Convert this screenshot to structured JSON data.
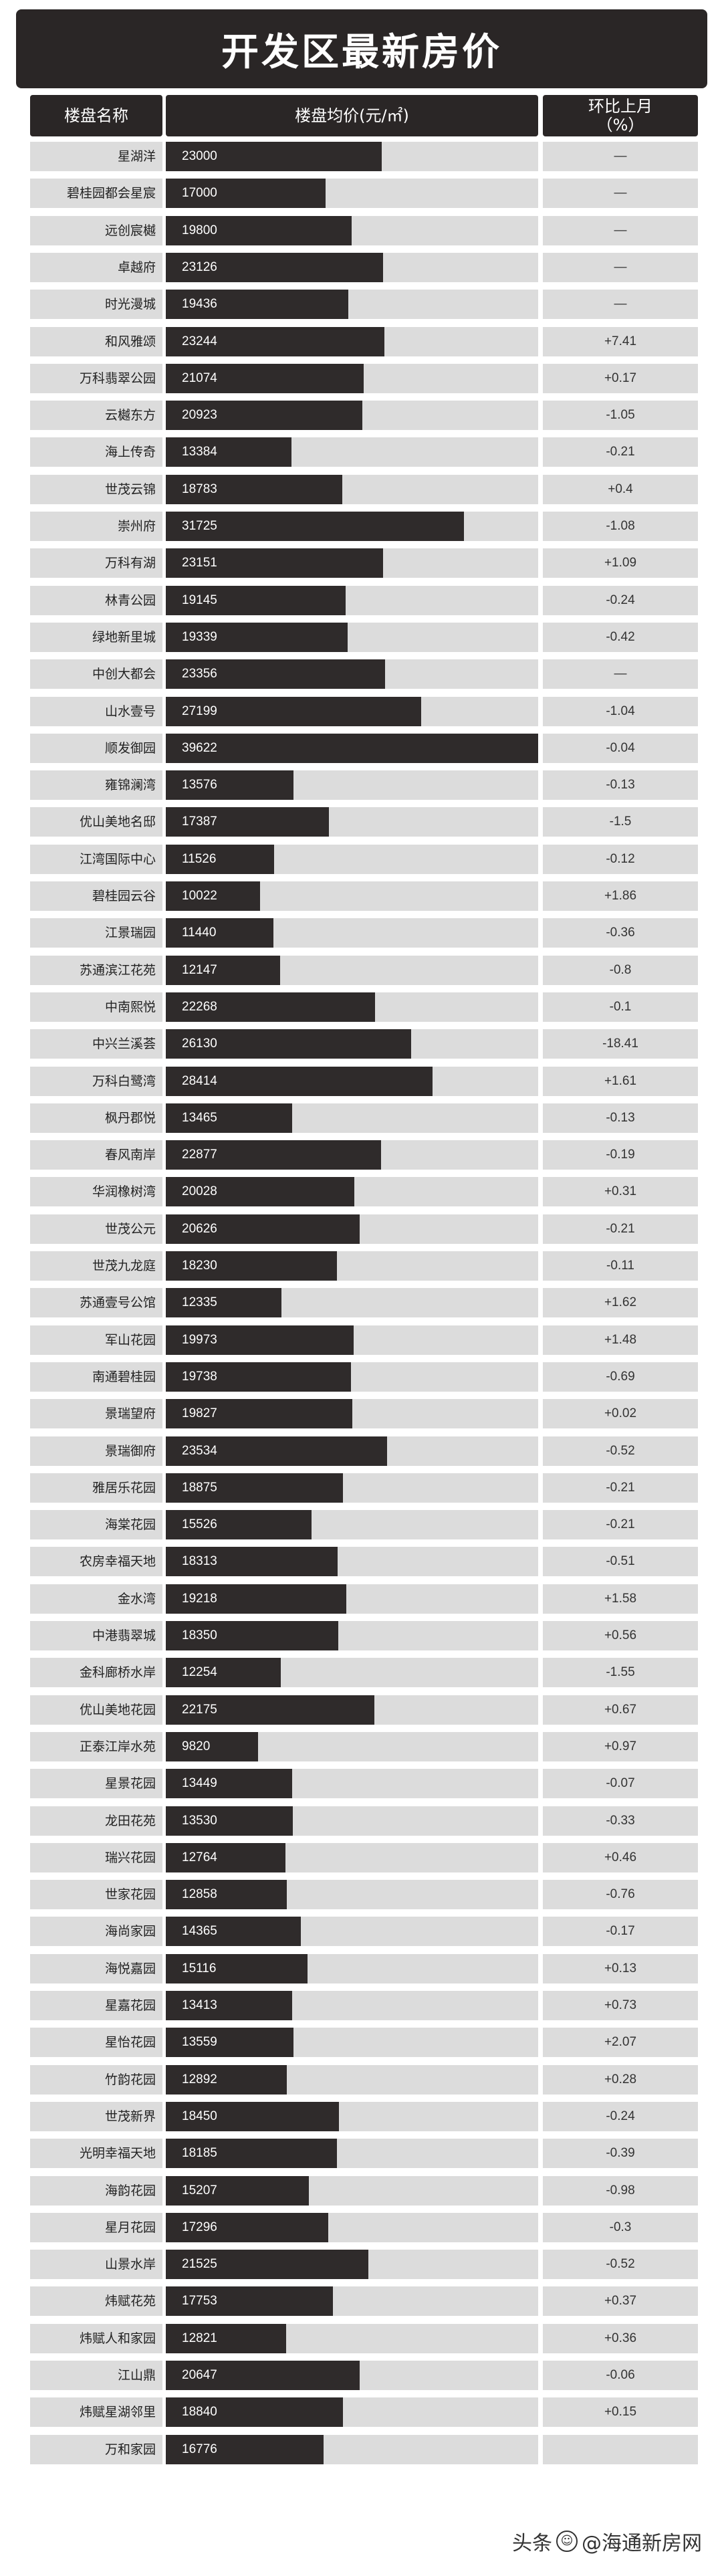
{
  "title": "开发区最新房价",
  "headers": {
    "name": "楼盘名称",
    "price": "楼盘均价(元/㎡)",
    "change": "环比上月\n（%）"
  },
  "watermark": {
    "prefix": "头条",
    "handle": "@海通新房网"
  },
  "chart_data": {
    "type": "bar",
    "orientation": "horizontal",
    "xlim": [
      0,
      39622
    ],
    "categories": [
      "星湖洋",
      "碧桂园都会星宸",
      "远创宸樾",
      "卓越府",
      "时光漫城",
      "和风雅颂",
      "万科翡翠公园",
      "云樾东方",
      "海上传奇",
      "世茂云锦",
      "崇州府",
      "万科有湖",
      "林青公园",
      "绿地新里城",
      "中创大都会",
      "山水壹号",
      "顺发御园",
      "雍锦澜湾",
      "优山美地名邸",
      "江湾国际中心",
      "碧桂园云谷",
      "江景瑞园",
      "苏通滨江花苑",
      "中南熙悦",
      "中兴兰溪荟",
      "万科白鹭湾",
      "枫丹郡悦",
      "春风南岸",
      "华润橡树湾",
      "世茂公元",
      "世茂九龙庭",
      "苏通壹号公馆",
      "军山花园",
      "南通碧桂园",
      "景瑞望府",
      "景瑞御府",
      "雅居乐花园",
      "海棠花园",
      "农房幸福天地",
      "金水湾",
      "中港翡翠城",
      "金科廊桥水岸",
      "优山美地花园",
      "正泰江岸水苑",
      "星景花园",
      "龙田花苑",
      "瑞兴花园",
      "世家花园",
      "海尚家园",
      "海悦嘉园",
      "星嘉花园",
      "星怡花园",
      "竹韵花园",
      "世茂新界",
      "光明幸福天地",
      "海韵花园",
      "星月花园",
      "山景水岸",
      "炜赋花苑",
      "炜赋人和家园",
      "江山鼎",
      "炜赋星湖邻里",
      "万和家园"
    ],
    "series": [
      {
        "values": [
          23000,
          17000,
          19800,
          23126,
          19436,
          23244,
          21074,
          20923,
          13384,
          18783,
          31725,
          23151,
          19145,
          19339,
          23356,
          27199,
          39622,
          13576,
          17387,
          11526,
          10022,
          11440,
          12147,
          22268,
          26130,
          28414,
          13465,
          22877,
          20028,
          20626,
          18230,
          12335,
          19973,
          19738,
          19827,
          23534,
          18875,
          15526,
          18313,
          19218,
          18350,
          12254,
          22175,
          9820,
          13449,
          13530,
          12764,
          12858,
          14365,
          15116,
          13413,
          13559,
          12892,
          18450,
          18185,
          15207,
          17296,
          21525,
          17753,
          12821,
          20647,
          18840,
          16776
        ]
      }
    ],
    "changes": [
      "—",
      "—",
      "—",
      "—",
      "—",
      "+7.41",
      "+0.17",
      "-1.05",
      "-0.21",
      "+0.4",
      "-1.08",
      "+1.09",
      "-0.24",
      "-0.42",
      "—",
      "-1.04",
      "-0.04",
      "-0.13",
      "-1.5",
      "-0.12",
      "+1.86",
      "-0.36",
      "-0.8",
      "-0.1",
      "-18.41",
      "+1.61",
      "-0.13",
      "-0.19",
      "+0.31",
      "-0.21",
      "-0.11",
      "+1.62",
      "+1.48",
      "-0.69",
      "+0.02",
      "-0.52",
      "-0.21",
      "-0.21",
      "-0.51",
      "+1.58",
      "+0.56",
      "-1.55",
      "+0.67",
      "+0.97",
      "-0.07",
      "-0.33",
      "+0.46",
      "-0.76",
      "-0.17",
      "+0.13",
      "+0.73",
      "+2.07",
      "+0.28",
      "-0.24",
      "-0.39",
      "-0.98",
      "-0.3",
      "-0.52",
      "+0.37",
      "+0.36",
      "-0.06",
      "+0.15",
      ""
    ],
    "colors": {
      "bar": "#2f2b2b",
      "track": "#dcdcdc",
      "header": "#2a2626"
    }
  }
}
